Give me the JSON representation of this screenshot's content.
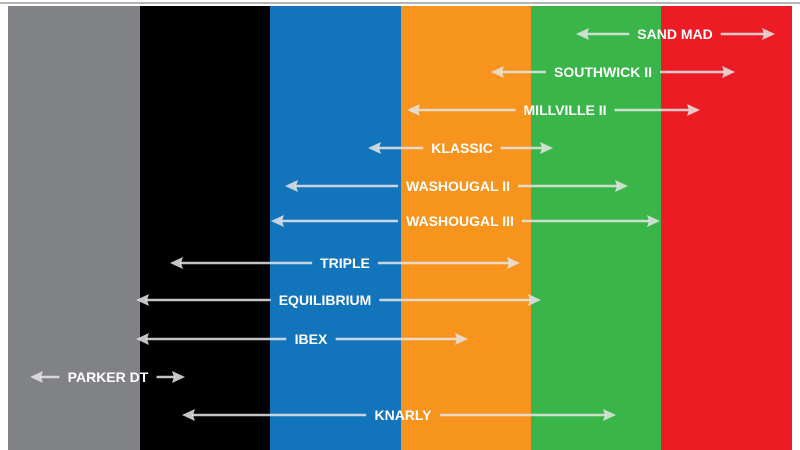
{
  "columns": [
    {
      "color": "#818285"
    },
    {
      "color": "#000000"
    },
    {
      "color": "#1275bc"
    },
    {
      "color": "#f7941e"
    },
    {
      "color": "#39b54a"
    },
    {
      "color": "#ed1c24"
    }
  ],
  "arrow_color": "#e6e6e6",
  "tires": [
    {
      "name": "SAND MAD"
    },
    {
      "name": "SOUTHWICK II"
    },
    {
      "name": "MILLVILLE II"
    },
    {
      "name": "KLASSIC"
    },
    {
      "name": "WASHOUGAL II"
    },
    {
      "name": "WASHOUGAL III"
    },
    {
      "name": "TRIPLE"
    },
    {
      "name": "EQUILIBRIUM"
    },
    {
      "name": "IBEX"
    },
    {
      "name": "PARKER DT"
    },
    {
      "name": "KNARLY"
    }
  ]
}
